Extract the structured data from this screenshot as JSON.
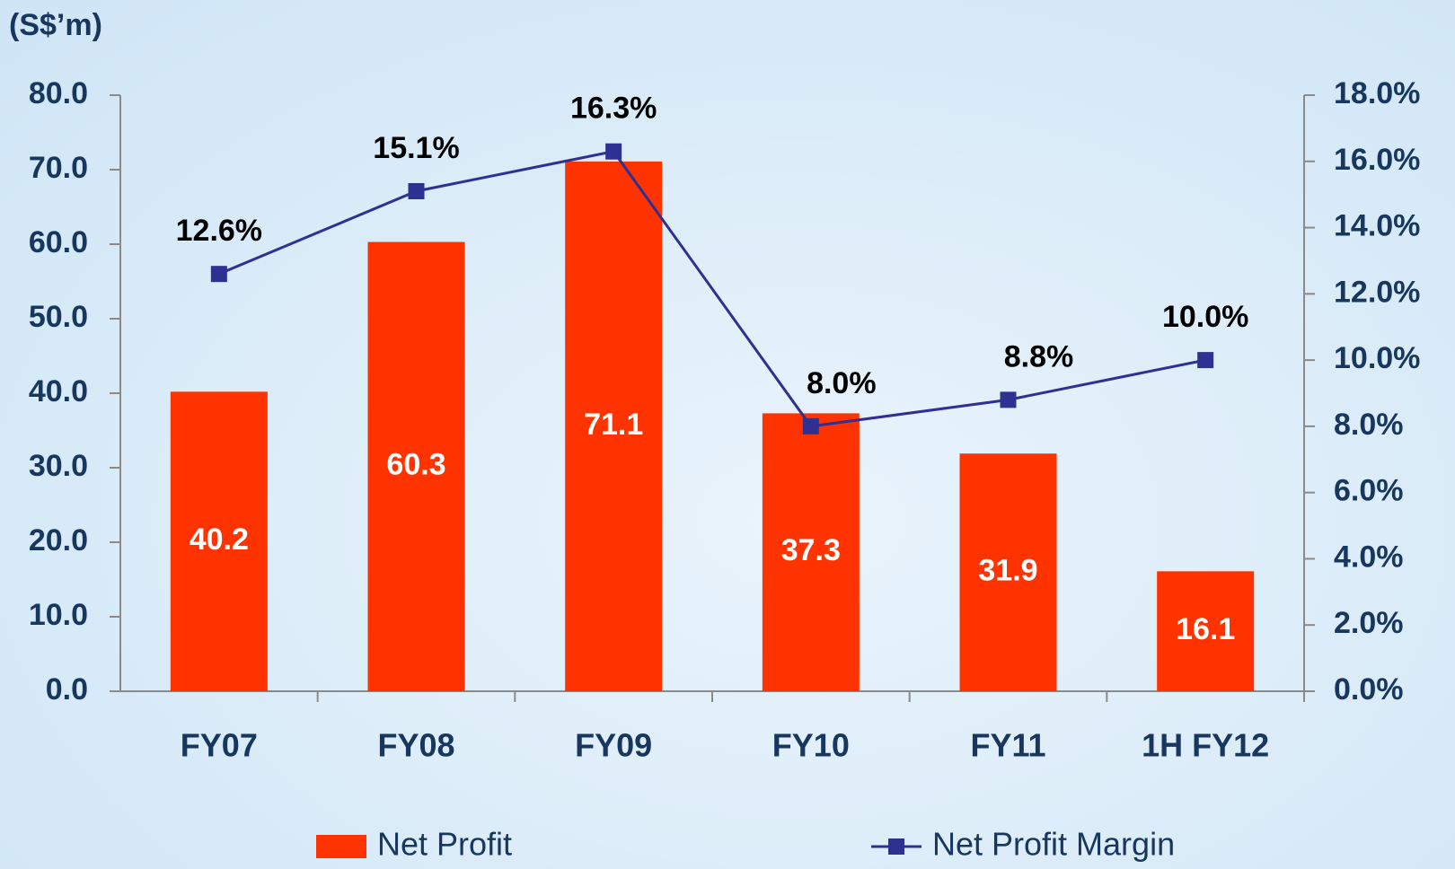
{
  "chart_data": {
    "type": "bar",
    "y_label": "(S$’m)",
    "categories": [
      "FY07",
      "FY08",
      "FY09",
      "FY10",
      "FY11",
      "1H FY12"
    ],
    "series": [
      {
        "name": "Net Profit",
        "type": "bar",
        "color": "#ff3300",
        "values": [
          40.2,
          60.3,
          71.1,
          37.3,
          31.9,
          16.1
        ]
      },
      {
        "name": "Net Profit Margin",
        "type": "line",
        "axis": "y2",
        "color": "#2e3192",
        "values": [
          12.6,
          15.1,
          16.3,
          8.0,
          8.8,
          10.0
        ],
        "value_labels": [
          "12.6%",
          "15.1%",
          "16.3%",
          "8.0%",
          "8.8%",
          "10.0%"
        ]
      }
    ],
    "ylim": [
      0,
      80
    ],
    "yticks": [
      {
        "value": 0,
        "label": "0.0"
      },
      {
        "value": 10,
        "label": "10.0"
      },
      {
        "value": 20,
        "label": "20.0"
      },
      {
        "value": 30,
        "label": "30.0"
      },
      {
        "value": 40,
        "label": "40.0"
      },
      {
        "value": 50,
        "label": "50.0"
      },
      {
        "value": 60,
        "label": "60.0"
      },
      {
        "value": 70,
        "label": "70.0"
      },
      {
        "value": 80,
        "label": "80.0"
      }
    ],
    "y2lim": [
      0,
      18
    ],
    "y2ticks": [
      {
        "value": 0,
        "label": "0.0%"
      },
      {
        "value": 2,
        "label": "2.0%"
      },
      {
        "value": 4,
        "label": "4.0%"
      },
      {
        "value": 6,
        "label": "6.0%"
      },
      {
        "value": 8,
        "label": "8.0%"
      },
      {
        "value": 10,
        "label": "10.0%"
      },
      {
        "value": 12,
        "label": "12.0%"
      },
      {
        "value": 14,
        "label": "14.0%"
      },
      {
        "value": 16,
        "label": "16.0%"
      },
      {
        "value": 18,
        "label": "18.0%"
      }
    ],
    "legend": "bottom"
  }
}
